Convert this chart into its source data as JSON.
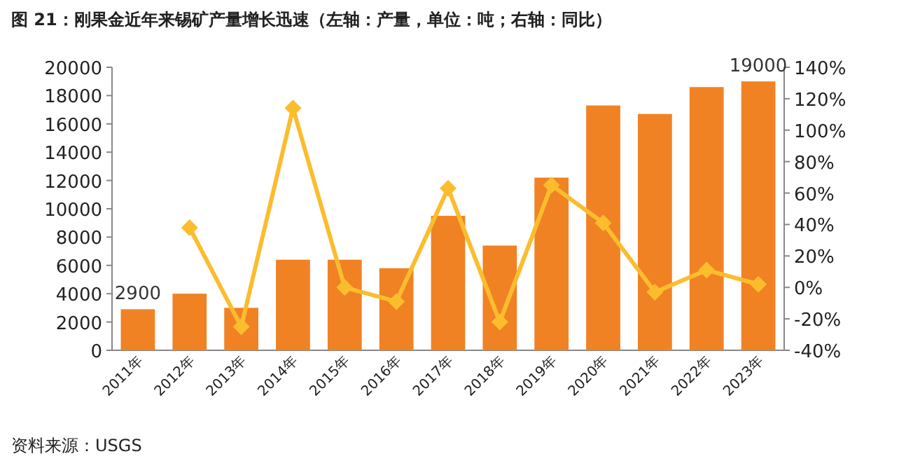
{
  "chart_data": {
    "type": "bar",
    "title": "图 21：刚果金近年来锡矿产量增长迅速（左轴：产量，单位：吨；右轴：同比）",
    "categories": [
      "2011年",
      "2012年",
      "2013年",
      "2014年",
      "2015年",
      "2016年",
      "2017年",
      "2018年",
      "2019年",
      "2020年",
      "2021年",
      "2022年",
      "2023年"
    ],
    "series": [
      {
        "color": "#f08224",
        "values": [
          2900,
          4000,
          3000,
          6400,
          6400,
          5800,
          9500,
          7400,
          12200,
          17300,
          16700,
          18600,
          19000
        ],
        "value_labels": [
          "2900",
          null,
          null,
          null,
          null,
          null,
          null,
          null,
          null,
          null,
          null,
          null,
          "19000"
        ]
      },
      {
        "type": "line",
        "axis": "y2",
        "color": "#fbbd2e",
        "values": [
          null,
          38,
          -25,
          114,
          0,
          -9,
          63,
          -22,
          65,
          41,
          -3,
          11,
          2
        ]
      }
    ],
    "marker": "diamond",
    "ylim": [
      0,
      20000
    ],
    "yticks": [
      0,
      2000,
      4000,
      6000,
      8000,
      10000,
      12000,
      14000,
      16000,
      18000,
      20000
    ],
    "y2lim": [
      -40,
      140
    ],
    "y2ticks": [
      {
        "value": -40,
        "label": "-40%"
      },
      {
        "value": -20,
        "label": "-20%"
      },
      {
        "value": 0,
        "label": "0%"
      },
      {
        "value": 20,
        "label": "20%"
      },
      {
        "value": 40,
        "label": "40%"
      },
      {
        "value": 60,
        "label": "60%"
      },
      {
        "value": 80,
        "label": "80%"
      },
      {
        "value": 100,
        "label": "100%"
      },
      {
        "value": 120,
        "label": "120%"
      },
      {
        "value": 140,
        "label": "140%"
      }
    ],
    "annotations": [
      "资料来源：USGS"
    ]
  }
}
